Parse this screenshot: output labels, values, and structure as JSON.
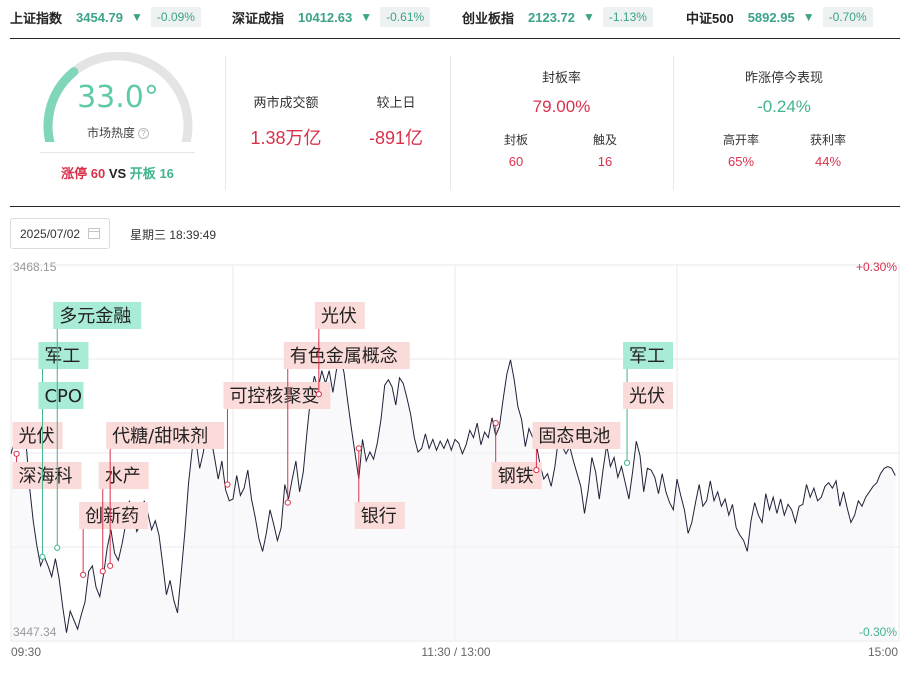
{
  "tickers": [
    {
      "name": "上证指数",
      "price": "3454.79",
      "arrow": "▼",
      "change": "-0.09%"
    },
    {
      "name": "深证成指",
      "price": "10412.63",
      "arrow": "▼",
      "change": "-0.61%"
    },
    {
      "name": "创业板指",
      "price": "2123.72",
      "arrow": "▼",
      "change": "-1.13%"
    },
    {
      "name": "中证500",
      "price": "5892.95",
      "arrow": "▼",
      "change": "-0.70%"
    }
  ],
  "heat": {
    "value": "33.0°",
    "level": 0.33,
    "label": "市场热度",
    "help_icon": "?",
    "limit_up_label": "涨停",
    "limit_up": "60",
    "vs": "VS",
    "open_label": "开板",
    "open_count": "16"
  },
  "turnover": {
    "label": "两市成交额",
    "value": "1.38万亿",
    "prev_label": "较上日",
    "prev_value": "-891亿"
  },
  "seal": {
    "title": "封板率",
    "rate": "79.00%",
    "sealed_label": "封板",
    "sealed": "60",
    "touched_label": "触及",
    "touched": "16"
  },
  "yesterday": {
    "title": "昨涨停今表现",
    "value": "-0.24%",
    "high_open_label": "高开率",
    "high_open": "65%",
    "profit_label": "获利率",
    "profit": "44%"
  },
  "date": {
    "value": "2025/07/02",
    "calendar_icon": "calendar-icon",
    "weekday_time": "星期三 18:39:49"
  },
  "chart_data": {
    "type": "line",
    "y_top_label": "3468.15",
    "y_bottom_label": "3447.34",
    "pct_top_label": "+0.30%",
    "pct_bottom_label": "-0.30%",
    "ylim": [
      3447.34,
      3468.15
    ],
    "x_labels": [
      "09:30",
      "11:30 / 13:00",
      "15:00"
    ],
    "x_range": [
      0,
      240
    ],
    "series": [
      {
        "values": [
          [
            0,
            3457.7
          ],
          [
            2,
            3459.2
          ],
          [
            4,
            3458.5
          ],
          [
            5,
            3455.9
          ],
          [
            6,
            3454.0
          ],
          [
            7,
            3452.6
          ],
          [
            8,
            3451.5
          ],
          [
            9,
            3452.0
          ],
          [
            10,
            3451.5
          ],
          [
            11,
            3450.9
          ],
          [
            12,
            3451.9
          ],
          [
            13,
            3450.8
          ],
          [
            14,
            3449.2
          ],
          [
            15,
            3447.8
          ],
          [
            16,
            3449.0
          ],
          [
            17,
            3448.5
          ],
          [
            18,
            3448.0
          ],
          [
            19,
            3448.8
          ],
          [
            20,
            3449.5
          ],
          [
            21,
            3451.2
          ],
          [
            22,
            3451.5
          ],
          [
            23,
            3450.3
          ],
          [
            24,
            3449.8
          ],
          [
            25,
            3451.0
          ],
          [
            26,
            3452.5
          ],
          [
            27,
            3453.5
          ],
          [
            28,
            3452.2
          ],
          [
            29,
            3451.8
          ],
          [
            30,
            3452.7
          ],
          [
            31,
            3453.8
          ],
          [
            32,
            3455.1
          ],
          [
            33,
            3454.3
          ],
          [
            34,
            3453.4
          ],
          [
            35,
            3453.8
          ],
          [
            36,
            3455.1
          ],
          [
            37,
            3454.4
          ],
          [
            38,
            3453.5
          ],
          [
            39,
            3454.0
          ],
          [
            40,
            3453.2
          ],
          [
            41,
            3451.6
          ],
          [
            42,
            3449.9
          ],
          [
            43,
            3450.7
          ],
          [
            44,
            3449.6
          ],
          [
            45,
            3448.9
          ],
          [
            46,
            3451.1
          ],
          [
            47,
            3453.4
          ],
          [
            48,
            3456.1
          ],
          [
            49,
            3458.0
          ],
          [
            50,
            3458.4
          ],
          [
            51,
            3456.9
          ],
          [
            52,
            3457.8
          ],
          [
            53,
            3459.4
          ],
          [
            54,
            3458.6
          ],
          [
            55,
            3457.5
          ],
          [
            56,
            3456.3
          ],
          [
            57,
            3457.3
          ],
          [
            58,
            3455.7
          ],
          [
            59,
            3455.1
          ],
          [
            60,
            3455.2
          ],
          [
            61,
            3456.5
          ],
          [
            62,
            3455.4
          ],
          [
            63,
            3455.8
          ],
          [
            64,
            3456.8
          ],
          [
            65,
            3455.2
          ],
          [
            66,
            3454.2
          ],
          [
            67,
            3453.0
          ],
          [
            68,
            3452.3
          ],
          [
            69,
            3453.3
          ],
          [
            70,
            3454.6
          ],
          [
            71,
            3453.8
          ],
          [
            72,
            3452.9
          ],
          [
            73,
            3453.6
          ],
          [
            74,
            3456.0
          ],
          [
            75,
            3455.2
          ],
          [
            76,
            3456.3
          ],
          [
            77,
            3457.3
          ],
          [
            78,
            3455.6
          ],
          [
            79,
            3456.7
          ],
          [
            80,
            3458.9
          ],
          [
            81,
            3460.9
          ],
          [
            82,
            3462.0
          ],
          [
            83,
            3461.3
          ],
          [
            84,
            3462.3
          ],
          [
            85,
            3461.6
          ],
          [
            86,
            3462.3
          ],
          [
            87,
            3461.1
          ],
          [
            88,
            3462.4
          ],
          [
            89,
            3463.0
          ],
          [
            90,
            3462.2
          ],
          [
            91,
            3460.6
          ],
          [
            92,
            3459.1
          ],
          [
            93,
            3457.7
          ],
          [
            94,
            3456.3
          ],
          [
            95,
            3458.5
          ],
          [
            96,
            3457.3
          ],
          [
            97,
            3457.8
          ],
          [
            98,
            3457.4
          ],
          [
            99,
            3458.3
          ],
          [
            100,
            3459.6
          ],
          [
            101,
            3461.5
          ],
          [
            102,
            3461.8
          ],
          [
            103,
            3461.4
          ],
          [
            104,
            3460.4
          ],
          [
            105,
            3461.9
          ],
          [
            106,
            3461.6
          ],
          [
            107,
            3460.8
          ],
          [
            108,
            3459.9
          ],
          [
            109,
            3458.6
          ],
          [
            110,
            3457.8
          ],
          [
            111,
            3458.0
          ],
          [
            112,
            3458.8
          ],
          [
            113,
            3458.0
          ],
          [
            114,
            3458.5
          ],
          [
            115,
            3457.9
          ],
          [
            116,
            3458.4
          ],
          [
            117,
            3458.0
          ],
          [
            118,
            3458.5
          ],
          [
            119,
            3457.9
          ],
          [
            120,
            3458.5
          ],
          [
            121,
            3458.3
          ],
          [
            122,
            3457.7
          ],
          [
            123,
            3458.2
          ],
          [
            124,
            3459.0
          ],
          [
            125,
            3458.6
          ],
          [
            126,
            3459.4
          ],
          [
            127,
            3458.2
          ],
          [
            128,
            3458.9
          ],
          [
            129,
            3458.6
          ],
          [
            130,
            3459.7
          ],
          [
            131,
            3458.7
          ],
          [
            132,
            3459.2
          ],
          [
            133,
            3460.7
          ],
          [
            134,
            3462.1
          ],
          [
            135,
            3462.9
          ],
          [
            136,
            3461.8
          ],
          [
            137,
            3460.3
          ],
          [
            138,
            3459.6
          ],
          [
            139,
            3458.1
          ],
          [
            140,
            3459.1
          ],
          [
            141,
            3458.6
          ],
          [
            142,
            3458.2
          ],
          [
            143,
            3457.1
          ],
          [
            144,
            3456.3
          ],
          [
            145,
            3456.6
          ],
          [
            146,
            3455.9
          ],
          [
            147,
            3457.0
          ],
          [
            148,
            3458.6
          ],
          [
            149,
            3458.1
          ],
          [
            150,
            3457.7
          ],
          [
            151,
            3458.1
          ],
          [
            152,
            3457.3
          ],
          [
            153,
            3456.6
          ],
          [
            154,
            3455.9
          ],
          [
            155,
            3454.4
          ],
          [
            156,
            3455.7
          ],
          [
            157,
            3457.5
          ],
          [
            158,
            3456.7
          ],
          [
            159,
            3455.2
          ],
          [
            160,
            3456.8
          ],
          [
            161,
            3458.2
          ],
          [
            162,
            3457.0
          ],
          [
            163,
            3457.5
          ],
          [
            164,
            3456.4
          ],
          [
            165,
            3457.0
          ],
          [
            166,
            3456.1
          ],
          [
            167,
            3455.2
          ],
          [
            168,
            3456.7
          ],
          [
            169,
            3458.4
          ],
          [
            170,
            3457.6
          ],
          [
            171,
            3455.6
          ],
          [
            172,
            3456.9
          ],
          [
            173,
            3456.8
          ],
          [
            174,
            3456.4
          ],
          [
            175,
            3455.5
          ],
          [
            176,
            3456.6
          ],
          [
            177,
            3455.6
          ],
          [
            178,
            3455.0
          ],
          [
            179,
            3454.6
          ],
          [
            180,
            3456.3
          ],
          [
            181,
            3455.4
          ],
          [
            182,
            3454.6
          ],
          [
            183,
            3453.3
          ],
          [
            184,
            3453.9
          ],
          [
            185,
            3455.0
          ],
          [
            186,
            3456.0
          ],
          [
            187,
            3454.8
          ],
          [
            188,
            3455.1
          ],
          [
            189,
            3456.2
          ],
          [
            190,
            3455.1
          ],
          [
            191,
            3455.6
          ],
          [
            192,
            3454.8
          ],
          [
            193,
            3455.2
          ],
          [
            194,
            3454.3
          ],
          [
            195,
            3454.9
          ],
          [
            196,
            3453.6
          ],
          [
            197,
            3453.2
          ],
          [
            198,
            3452.9
          ],
          [
            199,
            3452.3
          ],
          [
            200,
            3454.0
          ],
          [
            201,
            3455.0
          ],
          [
            202,
            3454.3
          ],
          [
            203,
            3453.9
          ],
          [
            204,
            3455.5
          ],
          [
            205,
            3454.6
          ],
          [
            206,
            3455.3
          ],
          [
            207,
            3454.4
          ],
          [
            208,
            3455.2
          ],
          [
            209,
            3454.3
          ],
          [
            210,
            3454.9
          ],
          [
            211,
            3454.6
          ],
          [
            212,
            3453.9
          ],
          [
            213,
            3454.8
          ],
          [
            214,
            3454.9
          ],
          [
            215,
            3456.0
          ],
          [
            216,
            3455.3
          ],
          [
            217,
            3455.8
          ],
          [
            218,
            3455.1
          ],
          [
            219,
            3455.3
          ],
          [
            220,
            3455.9
          ],
          [
            221,
            3456.1
          ],
          [
            222,
            3455.8
          ],
          [
            223,
            3456.2
          ],
          [
            224,
            3454.8
          ],
          [
            225,
            3455.6
          ],
          [
            226,
            3454.7
          ],
          [
            227,
            3453.9
          ],
          [
            228,
            3454.3
          ],
          [
            229,
            3455.1
          ],
          [
            230,
            3454.8
          ],
          [
            231,
            3455.3
          ],
          [
            232,
            3455.6
          ],
          [
            233,
            3455.9
          ],
          [
            234,
            3456.1
          ],
          [
            235,
            3456.6
          ],
          [
            236,
            3456.9
          ],
          [
            237,
            3457.0
          ],
          [
            238,
            3456.9
          ],
          [
            239,
            3456.5
          ]
        ]
      }
    ],
    "annotations": [
      {
        "t": 1.5,
        "text": "深海科",
        "color": "red",
        "y": 3457.7
      },
      {
        "t": 1.5,
        "text": "光伏",
        "color": "red",
        "y": 3457.7
      },
      {
        "t": 8.5,
        "text": "军工",
        "color": "green",
        "y": 3452.0
      },
      {
        "t": 8.5,
        "text": "CPO",
        "color": "green",
        "y": 3452.0
      },
      {
        "t": 12.5,
        "text": "多元金融",
        "color": "green",
        "y": 3452.5
      },
      {
        "t": 19.5,
        "text": "创新药",
        "color": "red",
        "y": 3451.0
      },
      {
        "t": 24.8,
        "text": "水产",
        "color": "red",
        "y": 3451.2
      },
      {
        "t": 26.8,
        "text": "代糖/甜味剂",
        "color": "red",
        "y": 3451.5
      },
      {
        "t": 58.5,
        "text": "可控核聚变",
        "color": "red",
        "y": 3456.0
      },
      {
        "t": 74.8,
        "text": "有色金属概念",
        "color": "red",
        "y": 3455.0
      },
      {
        "t": 83.2,
        "text": "光伏",
        "color": "red",
        "y": 3461.0
      },
      {
        "t": 94,
        "text": "银行",
        "color": "red",
        "y": 3458.0
      },
      {
        "t": 131,
        "text": "钢铁",
        "color": "red",
        "y": 3459.4
      },
      {
        "t": 142,
        "text": "固态电池",
        "color": "red",
        "y": 3456.8
      },
      {
        "t": 166.5,
        "text": "军工",
        "color": "green",
        "y": 3457.2
      },
      {
        "t": 166.5,
        "text": "光伏",
        "color": "red",
        "y": 3457.2
      }
    ],
    "colors": {
      "line": "#1f2238",
      "grid": "#e9e9ee",
      "up": "#d8324b",
      "down": "#3fb48e",
      "tag_red_bg": "#fadbd9",
      "tag_green_bg": "#a8ebd6"
    }
  }
}
